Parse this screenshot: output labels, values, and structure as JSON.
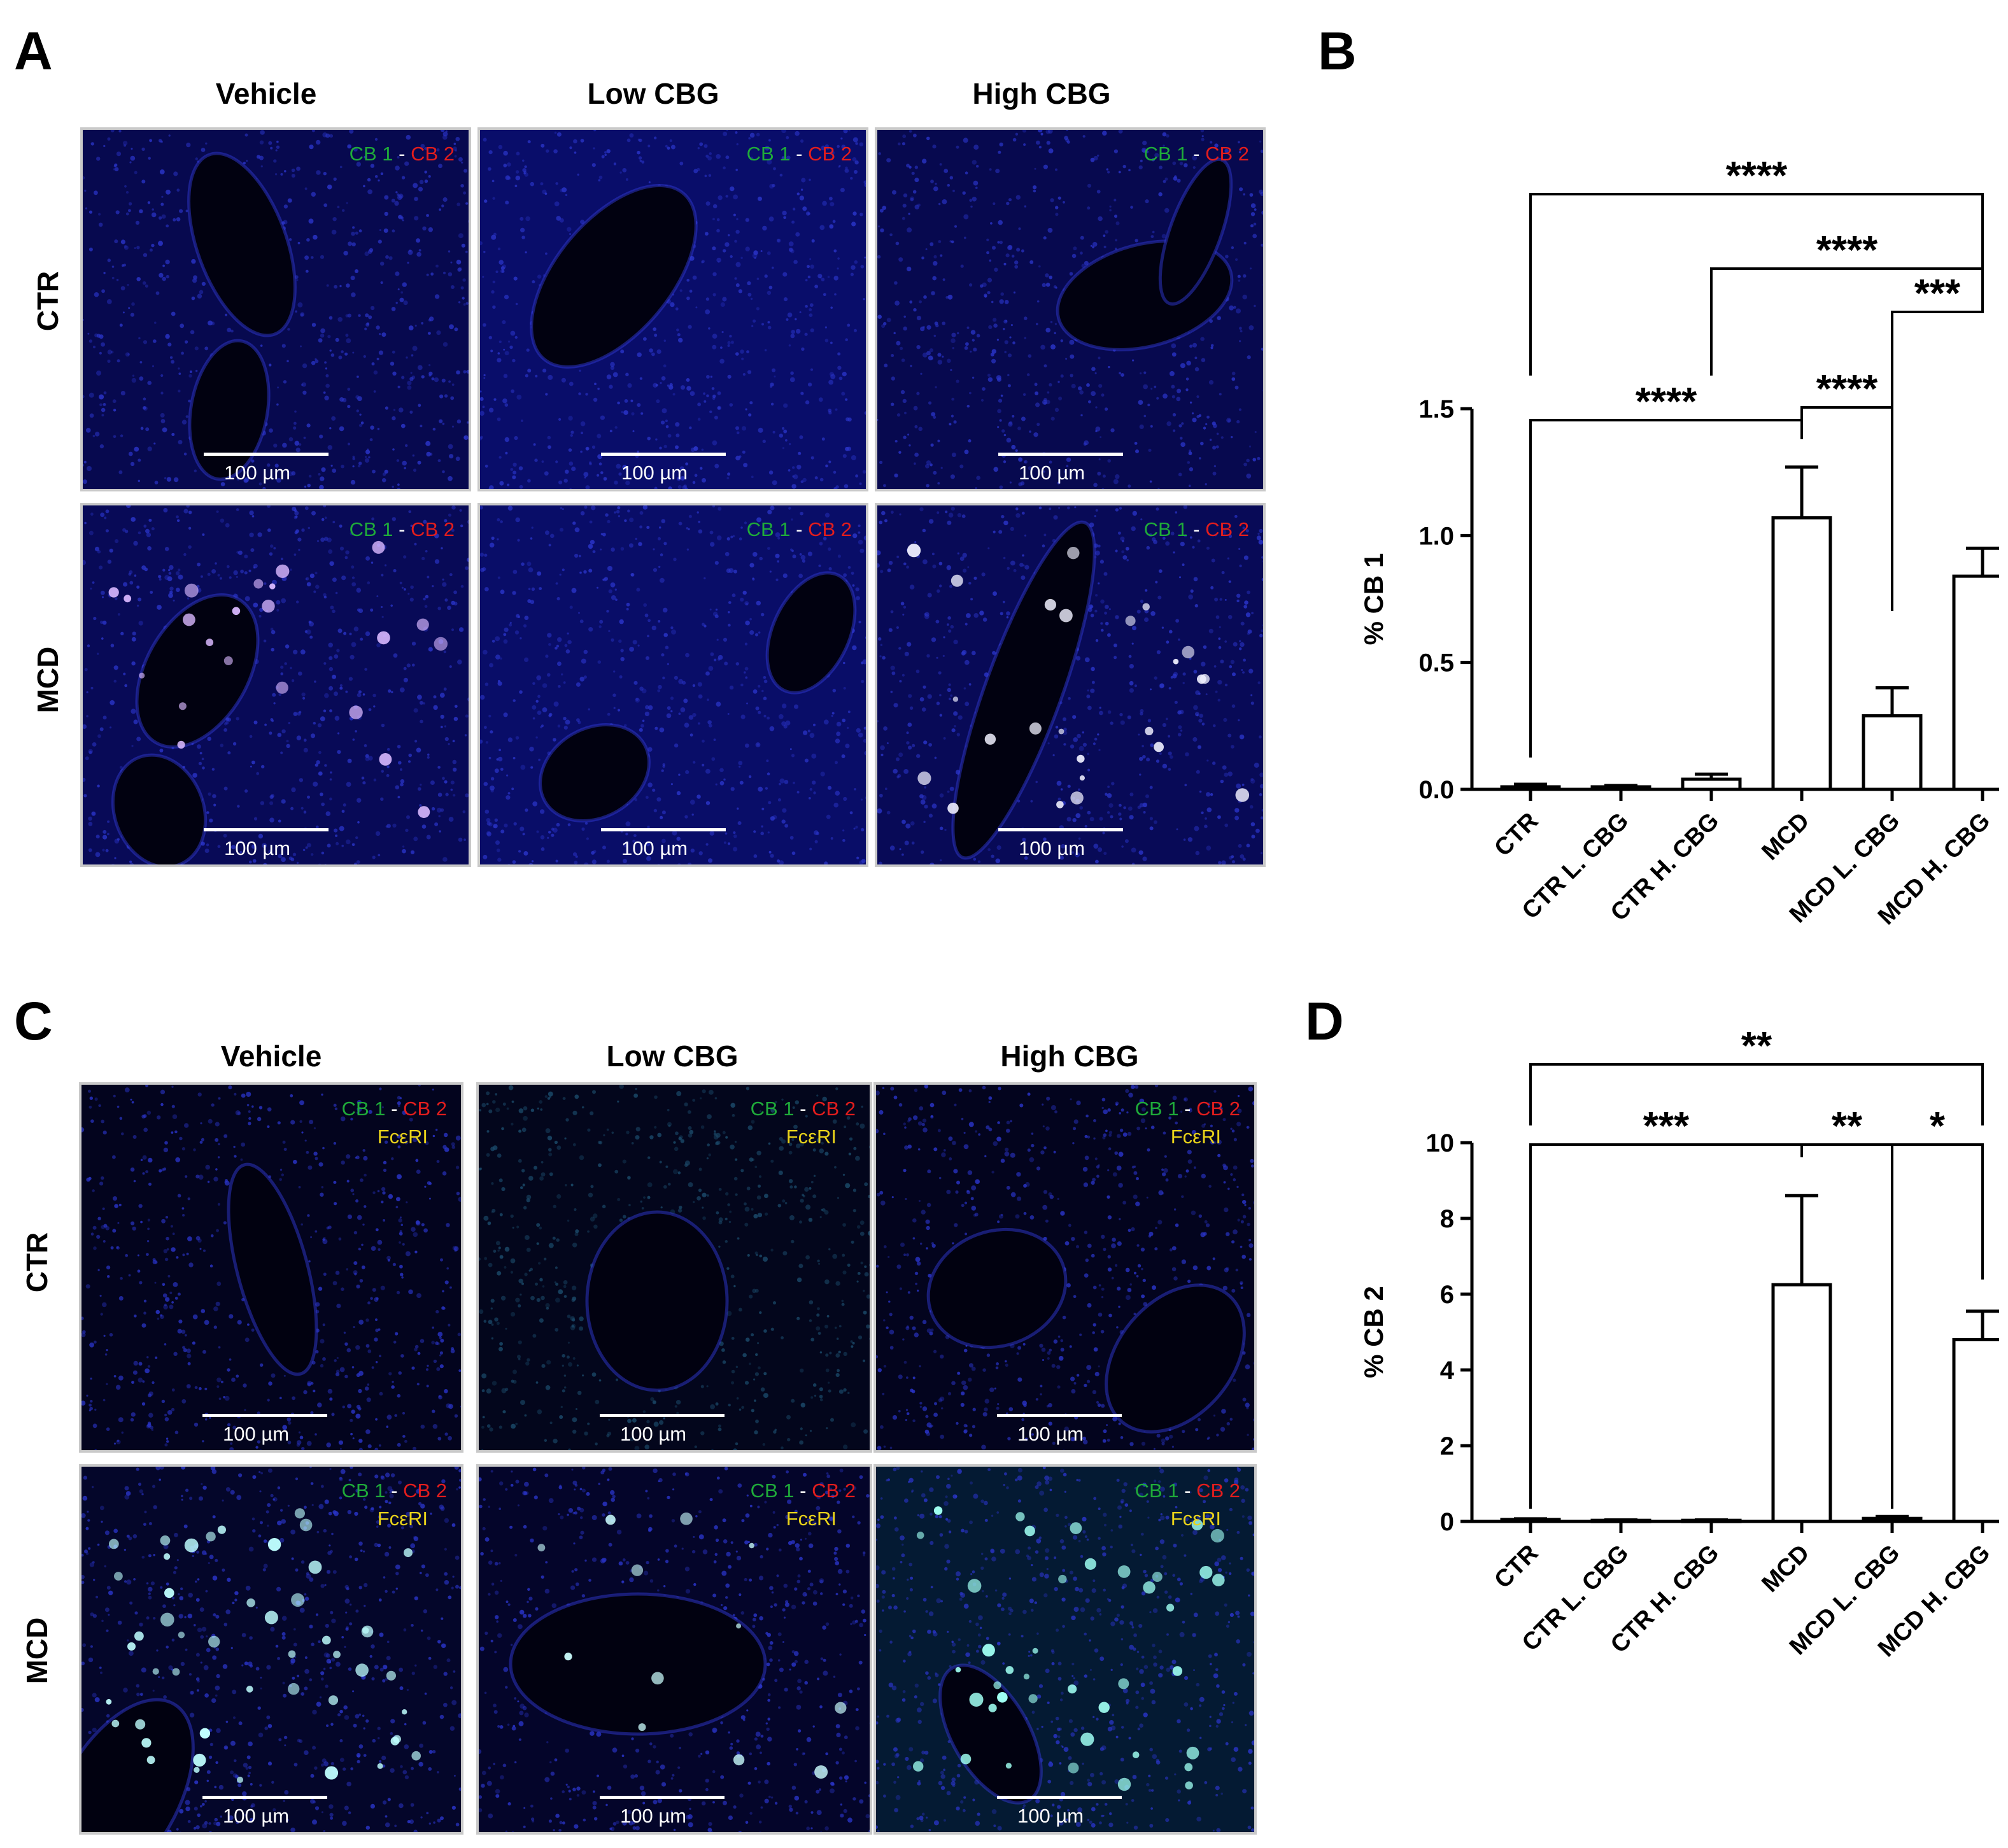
{
  "panels": {
    "A": {
      "letter": "A",
      "columns": [
        "Vehicle",
        "Low CBG",
        "High CBG"
      ],
      "rows": [
        "CTR",
        "MCD"
      ],
      "legend": {
        "cb1": "CB 1",
        "sep": " - ",
        "cb2": "CB 2"
      },
      "scale_label": "100 µm"
    },
    "C": {
      "letter": "C",
      "columns": [
        "Vehicle",
        "Low CBG",
        "High CBG"
      ],
      "rows": [
        "CTR",
        "MCD"
      ],
      "legend": {
        "cb1": "CB 1",
        "sep": " - ",
        "cb2": "CB 2",
        "extra": "FcεRI"
      },
      "scale_label": "100 µm"
    },
    "B": {
      "letter": "B"
    },
    "D": {
      "letter": "D"
    }
  },
  "colors": {
    "tissue_blue": "#0a0f6a",
    "cb1_green": "#1faa3a",
    "cb2_red": "#e21d1d",
    "fceri_yellow": "#e8d21a"
  },
  "chart_data": [
    {
      "type": "bar",
      "panel": "B",
      "categories": [
        "CTR",
        "CTR L. CBG",
        "CTR H. CBG",
        "MCD",
        "MCD L. CBG",
        "MCD H. CBG"
      ],
      "values": [
        0.01,
        0.01,
        0.04,
        1.07,
        0.29,
        0.84
      ],
      "errors": [
        0.01,
        0.005,
        0.02,
        0.2,
        0.11,
        0.11
      ],
      "ylabel": "% CB 1",
      "ylim": [
        0,
        1.5
      ],
      "yticks": [
        0.0,
        0.5,
        1.0,
        1.5
      ],
      "ytick_labels": [
        "0.0",
        "0.5",
        "1.0",
        "1.5"
      ],
      "significance": [
        {
          "from": "CTR",
          "to": "MCD H. CBG",
          "label": "****"
        },
        {
          "from": "CTR H. CBG",
          "to": "MCD H. CBG",
          "label": "****"
        },
        {
          "from": "MCD L. CBG",
          "to": "MCD H. CBG",
          "label": "***"
        },
        {
          "from": "CTR",
          "to": "MCD",
          "label": "****"
        },
        {
          "from": "MCD",
          "to": "MCD L. CBG",
          "label": "****"
        }
      ]
    },
    {
      "type": "bar",
      "panel": "D",
      "categories": [
        "CTR",
        "CTR L. CBG",
        "CTR H. CBG",
        "MCD",
        "MCD L. CBG",
        "MCD H. CBG"
      ],
      "values": [
        0.05,
        0.03,
        0.03,
        6.25,
        0.08,
        4.8
      ],
      "errors": [
        0.02,
        0.01,
        0.01,
        2.35,
        0.05,
        0.75
      ],
      "ylabel": "% CB 2",
      "ylim": [
        0,
        10
      ],
      "yticks": [
        0,
        2,
        4,
        6,
        8,
        10
      ],
      "ytick_labels": [
        "0",
        "2",
        "4",
        "6",
        "8",
        "10"
      ],
      "significance": [
        {
          "from": "CTR",
          "to": "MCD H. CBG",
          "label": "**"
        },
        {
          "from": "CTR",
          "to": "MCD",
          "label": "***"
        },
        {
          "from": "MCD",
          "to": "MCD L. CBG",
          "label": "**"
        },
        {
          "from": "MCD L. CBG",
          "to": "MCD H. CBG",
          "label": "*"
        }
      ]
    }
  ]
}
